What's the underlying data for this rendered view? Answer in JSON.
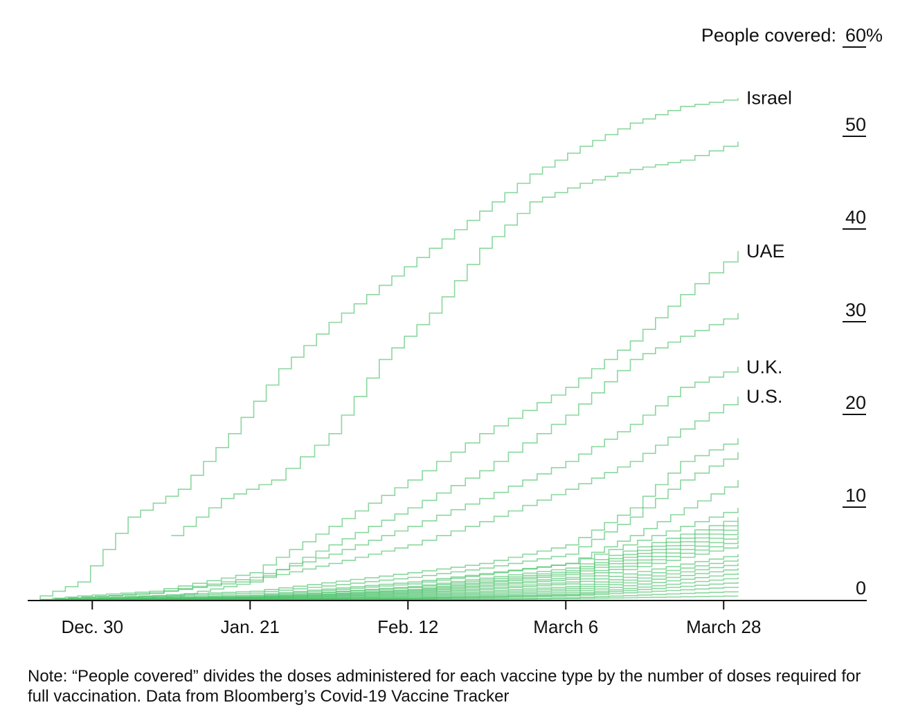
{
  "chart_data": {
    "type": "line",
    "step": true,
    "ylabel_prefix": "People covered: ",
    "y_unit": "%",
    "ylim": [
      0,
      60
    ],
    "yticks": [
      0,
      10,
      20,
      30,
      40,
      50,
      60
    ],
    "xticks": [
      "Dec. 30",
      "Jan. 21",
      "Feb. 12",
      "March 6",
      "March 28"
    ],
    "x_start": "2020-12-21",
    "x_end": "2021-03-30",
    "line_color": "#4cc26a",
    "grid": false,
    "annotations": [
      {
        "label": "Israel",
        "value": 54.2
      },
      {
        "label": "UAE",
        "value": 37.7
      },
      {
        "label": "U.K.",
        "value": 25.2
      },
      {
        "label": "U.S.",
        "value": 22.0
      }
    ],
    "series": [
      {
        "name": "Israel",
        "x": [
          "2020-12-21",
          "2020-12-28",
          "2021-01-04",
          "2021-01-11",
          "2021-01-18",
          "2021-01-25",
          "2021-02-01",
          "2021-02-08",
          "2021-02-15",
          "2021-02-22",
          "2021-03-01",
          "2021-03-08",
          "2021-03-15",
          "2021-03-22",
          "2021-03-30"
        ],
        "y": [
          0,
          2,
          9,
          12,
          18,
          25,
          30,
          34,
          38,
          42,
          46,
          49,
          51.5,
          53.3,
          54.2
        ]
      },
      {
        "name": "",
        "x": [
          "2021-01-10",
          "2021-01-17",
          "2021-01-24",
          "2021-02-01",
          "2021-02-08",
          "2021-02-15",
          "2021-02-22",
          "2021-03-01",
          "2021-03-08",
          "2021-03-15",
          "2021-03-22",
          "2021-03-30"
        ],
        "y": [
          7,
          11,
          13,
          18,
          26,
          31,
          38,
          43,
          45,
          46.5,
          47.5,
          49.5
        ]
      },
      {
        "name": "UAE",
        "x": [
          "2020-12-21",
          "2020-12-28",
          "2021-01-07",
          "2021-01-21",
          "2021-02-01",
          "2021-02-12",
          "2021-02-22",
          "2021-03-06",
          "2021-03-15",
          "2021-03-22",
          "2021-03-30"
        ],
        "y": [
          0,
          0.5,
          1,
          3,
          8,
          13,
          18,
          23,
          28,
          33,
          37.7
        ]
      },
      {
        "name": "",
        "x": [
          "2020-12-21",
          "2021-01-10",
          "2021-01-21",
          "2021-02-01",
          "2021-02-12",
          "2021-02-22",
          "2021-03-06",
          "2021-03-15",
          "2021-03-22",
          "2021-03-30"
        ],
        "y": [
          0,
          0.5,
          2,
          6,
          10,
          14,
          20,
          26,
          28.5,
          31
        ]
      },
      {
        "name": "U.K.",
        "x": [
          "2020-12-21",
          "2021-01-07",
          "2021-01-21",
          "2021-02-01",
          "2021-02-12",
          "2021-02-22",
          "2021-03-06",
          "2021-03-15",
          "2021-03-22",
          "2021-03-30"
        ],
        "y": [
          0,
          0.8,
          2.5,
          5,
          8,
          11,
          15,
          19,
          23,
          25.2
        ]
      },
      {
        "name": "U.S.",
        "x": [
          "2020-12-21",
          "2021-01-07",
          "2021-01-21",
          "2021-02-01",
          "2021-02-12",
          "2021-02-22",
          "2021-03-06",
          "2021-03-15",
          "2021-03-22",
          "2021-03-30"
        ],
        "y": [
          0,
          0.8,
          2.2,
          4,
          6,
          8.5,
          12,
          15,
          18.5,
          22
        ]
      },
      {
        "name": "",
        "x": [
          "2020-12-21",
          "2021-01-21",
          "2021-02-12",
          "2021-02-22",
          "2021-03-06",
          "2021-03-15",
          "2021-03-22",
          "2021-03-30"
        ],
        "y": [
          0,
          1,
          3,
          4,
          6,
          10,
          15,
          17.5
        ]
      },
      {
        "name": "",
        "x": [
          "2020-12-21",
          "2021-01-21",
          "2021-02-12",
          "2021-02-22",
          "2021-03-06",
          "2021-03-15",
          "2021-03-22",
          "2021-03-30"
        ],
        "y": [
          0,
          0.8,
          2.5,
          3.5,
          5,
          9,
          13,
          16
        ]
      },
      {
        "name": "",
        "x": [
          "2020-12-21",
          "2021-01-21",
          "2021-02-12",
          "2021-03-06",
          "2021-03-15",
          "2021-03-30"
        ],
        "y": [
          0,
          0.6,
          2,
          4,
          7,
          13
        ]
      },
      {
        "name": "",
        "x": [
          "2020-12-21",
          "2021-01-21",
          "2021-02-12",
          "2021-03-06",
          "2021-03-30"
        ],
        "y": [
          0,
          0.5,
          1.8,
          4,
          10
        ]
      },
      {
        "name": "",
        "x": [
          "2020-12-21",
          "2021-01-21",
          "2021-02-12",
          "2021-03-06",
          "2021-03-30"
        ],
        "y": [
          0,
          0.4,
          1.5,
          3.5,
          9
        ]
      },
      {
        "name": "",
        "x": [
          "2020-12-21",
          "2021-01-21",
          "2021-02-12",
          "2021-03-06",
          "2021-03-30"
        ],
        "y": [
          0,
          0.4,
          1.4,
          3.2,
          8.5
        ]
      },
      {
        "name": "",
        "x": [
          "2020-12-21",
          "2021-01-21",
          "2021-02-12",
          "2021-03-06",
          "2021-03-30"
        ],
        "y": [
          0,
          0.3,
          1.2,
          3,
          8
        ]
      },
      {
        "name": "",
        "x": [
          "2020-12-21",
          "2021-01-21",
          "2021-02-12",
          "2021-03-06",
          "2021-03-30"
        ],
        "y": [
          0,
          0.3,
          1.1,
          2.8,
          7.5
        ]
      },
      {
        "name": "",
        "x": [
          "2020-12-21",
          "2021-01-21",
          "2021-02-12",
          "2021-03-06",
          "2021-03-30"
        ],
        "y": [
          0,
          0.3,
          1,
          2.5,
          7
        ]
      },
      {
        "name": "",
        "x": [
          "2020-12-21",
          "2021-01-21",
          "2021-02-12",
          "2021-03-06",
          "2021-03-30"
        ],
        "y": [
          0,
          0.2,
          0.9,
          2.3,
          6.5
        ]
      },
      {
        "name": "",
        "x": [
          "2020-12-21",
          "2021-01-21",
          "2021-02-12",
          "2021-03-06",
          "2021-03-30"
        ],
        "y": [
          0,
          0.2,
          0.8,
          2,
          6
        ]
      },
      {
        "name": "",
        "x": [
          "2020-12-21",
          "2021-01-21",
          "2021-02-12",
          "2021-03-06",
          "2021-03-30"
        ],
        "y": [
          0,
          0.2,
          0.7,
          1.8,
          5
        ]
      },
      {
        "name": "",
        "x": [
          "2020-12-21",
          "2021-01-21",
          "2021-02-12",
          "2021-03-06",
          "2021-03-30"
        ],
        "y": [
          0,
          0.1,
          0.6,
          1.5,
          4.5
        ]
      },
      {
        "name": "",
        "x": [
          "2020-12-21",
          "2021-01-21",
          "2021-02-12",
          "2021-03-06",
          "2021-03-30"
        ],
        "y": [
          0,
          0.1,
          0.5,
          1.3,
          4
        ]
      },
      {
        "name": "",
        "x": [
          "2020-12-21",
          "2021-01-21",
          "2021-02-12",
          "2021-03-06",
          "2021-03-30"
        ],
        "y": [
          0,
          0.1,
          0.4,
          1.1,
          3.5
        ]
      },
      {
        "name": "",
        "x": [
          "2020-12-21",
          "2021-01-21",
          "2021-02-12",
          "2021-03-06",
          "2021-03-30"
        ],
        "y": [
          0,
          0.1,
          0.3,
          0.9,
          3
        ]
      },
      {
        "name": "",
        "x": [
          "2020-12-21",
          "2021-01-21",
          "2021-02-12",
          "2021-03-06",
          "2021-03-30"
        ],
        "y": [
          0,
          0.05,
          0.25,
          0.7,
          2.5
        ]
      },
      {
        "name": "",
        "x": [
          "2020-12-21",
          "2021-01-21",
          "2021-02-12",
          "2021-03-06",
          "2021-03-30"
        ],
        "y": [
          0,
          0.05,
          0.2,
          0.6,
          2
        ]
      },
      {
        "name": "",
        "x": [
          "2020-12-21",
          "2021-01-21",
          "2021-02-12",
          "2021-03-06",
          "2021-03-30"
        ],
        "y": [
          0,
          0.05,
          0.15,
          0.5,
          1.5
        ]
      },
      {
        "name": "",
        "x": [
          "2020-12-21",
          "2021-01-21",
          "2021-02-12",
          "2021-03-06",
          "2021-03-30"
        ],
        "y": [
          0,
          0,
          0.1,
          0.3,
          1
        ]
      },
      {
        "name": "",
        "x": [
          "2020-12-21",
          "2021-01-21",
          "2021-02-12",
          "2021-03-06",
          "2021-03-30"
        ],
        "y": [
          0,
          0,
          0.05,
          0.2,
          0.5
        ]
      }
    ]
  },
  "note": "Note: “People covered” divides the doses administered for each vaccine type by the number of doses required for full vaccination. Data from Bloomberg’s Covid-19 Vaccine Tracker"
}
